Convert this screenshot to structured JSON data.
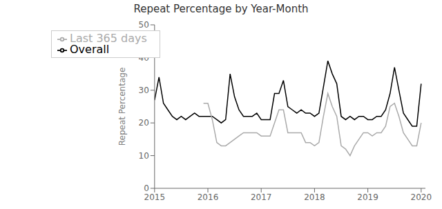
{
  "chart_data": {
    "type": "line",
    "title": "Repeat Percentage by Year-Month",
    "y_label": "Repeat Percentage",
    "xlim": [
      2015.0,
      2020.08
    ],
    "ylim": [
      0,
      50
    ],
    "xticks": [
      2015,
      2016,
      2017,
      2018,
      2019,
      2020
    ],
    "yticks": [
      0,
      10,
      20,
      30,
      40,
      50
    ],
    "grid": false,
    "legend": "upper left",
    "series": [
      {
        "name": "Overall",
        "color": "#000000",
        "x": [
          2015.0,
          2015.083,
          2015.167,
          2015.25,
          2015.333,
          2015.417,
          2015.5,
          2015.583,
          2015.667,
          2015.75,
          2015.833,
          2015.917,
          2016.0,
          2016.083,
          2016.167,
          2016.25,
          2016.333,
          2016.417,
          2016.5,
          2016.583,
          2016.667,
          2016.75,
          2016.833,
          2016.917,
          2017.0,
          2017.083,
          2017.167,
          2017.25,
          2017.333,
          2017.417,
          2017.5,
          2017.583,
          2017.667,
          2017.75,
          2017.833,
          2017.917,
          2018.0,
          2018.083,
          2018.167,
          2018.25,
          2018.333,
          2018.417,
          2018.5,
          2018.583,
          2018.667,
          2018.75,
          2018.833,
          2018.917,
          2019.0,
          2019.083,
          2019.167,
          2019.25,
          2019.333,
          2019.417,
          2019.5,
          2019.583,
          2019.667,
          2019.75,
          2019.833,
          2019.917,
          2020.0
        ],
        "values": [
          27,
          34,
          26,
          24,
          22,
          21,
          22,
          21,
          22,
          23,
          22,
          22,
          22,
          22,
          21,
          20,
          21,
          35,
          28,
          24,
          22,
          22,
          22,
          23,
          21,
          21,
          21,
          29,
          29,
          33,
          25,
          24,
          23,
          24,
          23,
          23,
          22,
          23,
          31,
          39,
          35,
          32,
          22,
          21,
          22,
          21,
          22,
          22,
          21,
          21,
          22,
          22,
          24,
          29,
          37,
          30,
          23,
          21,
          19,
          19,
          32
        ]
      },
      {
        "name": "Last 365 days",
        "color": "#aaaaaa",
        "x": [
          2015.917,
          2016.0,
          2016.083,
          2016.167,
          2016.25,
          2016.333,
          2016.417,
          2016.5,
          2016.583,
          2016.667,
          2016.75,
          2016.833,
          2016.917,
          2017.0,
          2017.083,
          2017.167,
          2017.25,
          2017.333,
          2017.417,
          2017.5,
          2017.583,
          2017.667,
          2017.75,
          2017.833,
          2017.917,
          2018.0,
          2018.083,
          2018.167,
          2018.25,
          2018.333,
          2018.417,
          2018.5,
          2018.583,
          2018.667,
          2018.75,
          2018.833,
          2018.917,
          2019.0,
          2019.083,
          2019.167,
          2019.25,
          2019.333,
          2019.417,
          2019.5,
          2019.583,
          2019.667,
          2019.75,
          2019.833,
          2019.917,
          2020.0
        ],
        "values": [
          26,
          26,
          21,
          14,
          13,
          13,
          14,
          15,
          16,
          17,
          17,
          17,
          17,
          16,
          16,
          16,
          20,
          24,
          24,
          17,
          17,
          17,
          17,
          14,
          14,
          13,
          14,
          22,
          29,
          25,
          22,
          13,
          12,
          10,
          13,
          15,
          17,
          17,
          16,
          17,
          17,
          19,
          25,
          26,
          22,
          17,
          15,
          13,
          13,
          20
        ]
      }
    ]
  }
}
